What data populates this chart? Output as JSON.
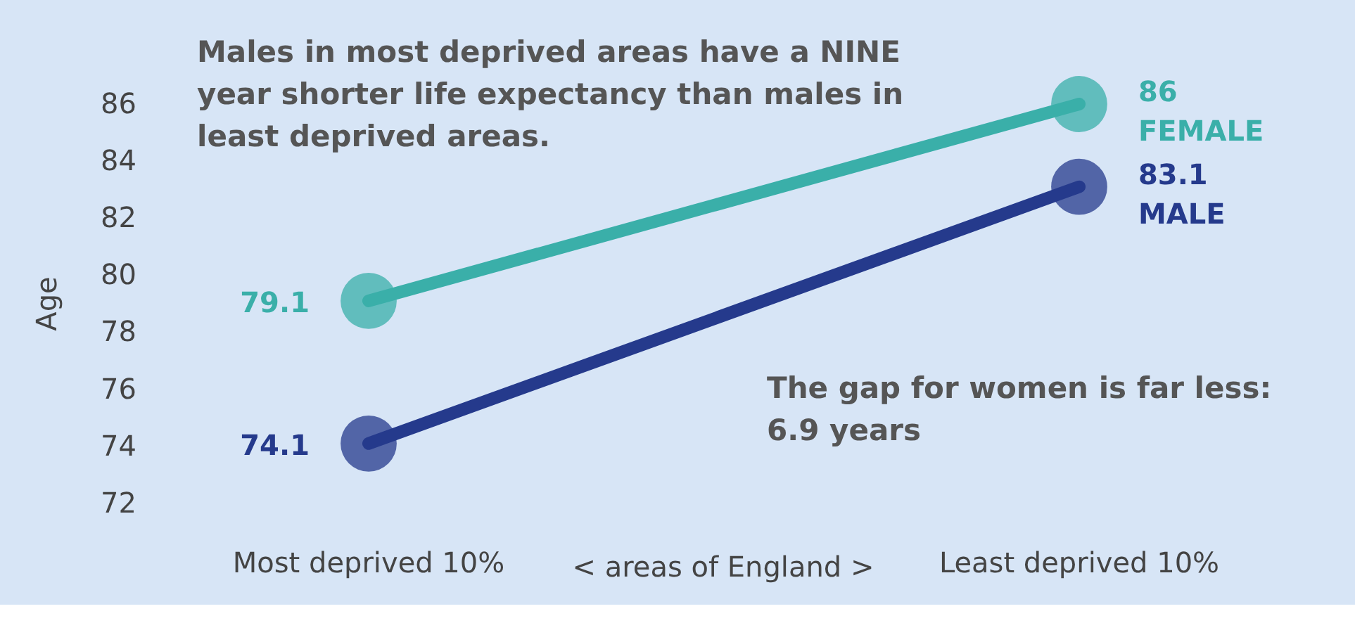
{
  "chart_data": {
    "type": "line",
    "categories": [
      "Most deprived 10%",
      "Least deprived 10%"
    ],
    "xlabel": "<  areas of England  >",
    "ylabel": "Age",
    "series": [
      {
        "name": "FEMALE",
        "color": "#3aafa9",
        "values": [
          79.1,
          86
        ]
      },
      {
        "name": "MALE",
        "color": "#253a8c",
        "values": [
          74.1,
          83.1
        ]
      }
    ],
    "ylim": [
      72,
      86
    ],
    "yticks": [
      72,
      74,
      76,
      78,
      80,
      82,
      84,
      86
    ],
    "grid": false,
    "legend": false,
    "marker": "circle",
    "line_style": "solid",
    "data_labels": true,
    "annotations": [
      "Males in most deprived areas have a NINE year shorter life expectancy than males in least deprived areas.",
      "The gap for women is far less: 6.9 years"
    ]
  }
}
